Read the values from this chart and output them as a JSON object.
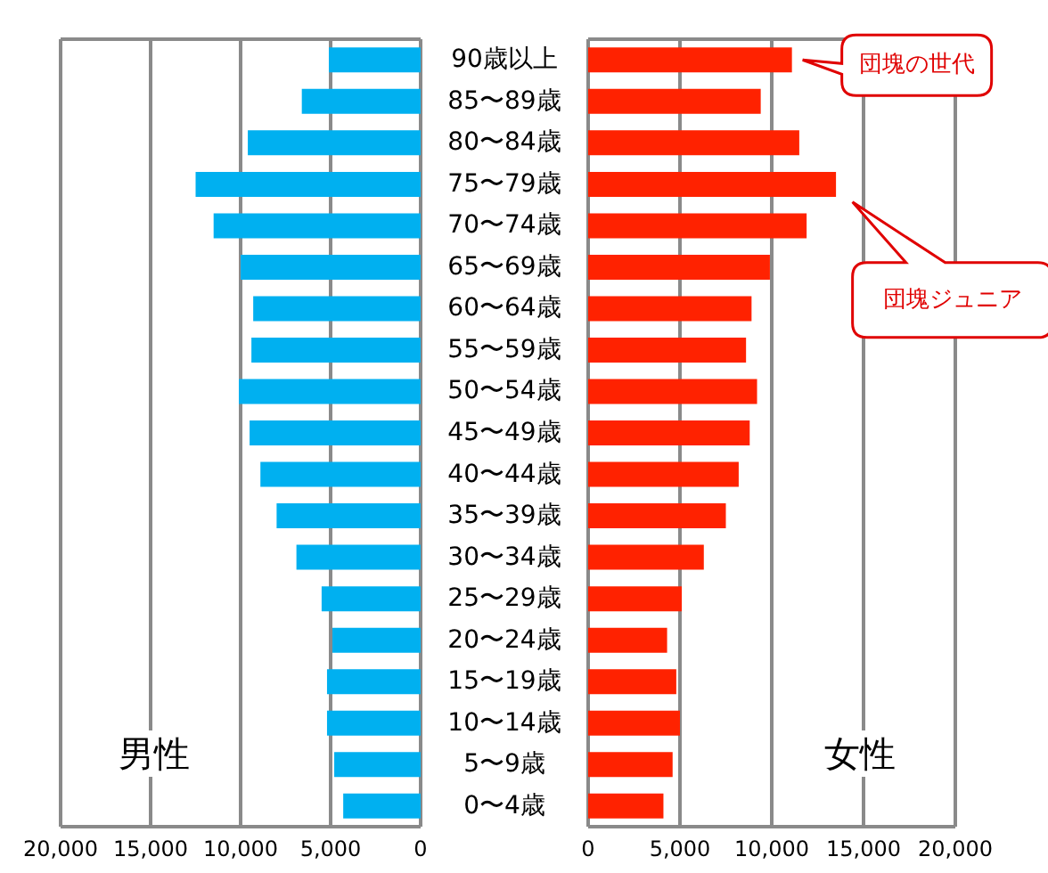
{
  "chart_data": [
    {
      "type": "bar",
      "orientation": "horizontal",
      "categories": [
        null,
        null,
        null,
        null,
        null,
        null,
        null,
        null,
        null,
        null,
        null,
        null,
        null,
        null,
        null,
        null,
        null,
        null,
        null
      ],
      "series": [
        {
          "name": "男性",
          "color": "#00b0f0",
          "values": [
            5100,
            6600,
            9600,
            12500,
            11500,
            10000,
            9300,
            9400,
            10100,
            9500,
            8900,
            8000,
            6900,
            5500,
            4900,
            5200,
            5200,
            4800,
            4300
          ]
        }
      ],
      "xlim": [
        20000,
        0
      ],
      "xticks": [
        {
          "value": 20000,
          "label": "20,000"
        },
        {
          "value": 15000,
          "label": "15,000"
        },
        {
          "value": 10000,
          "label": "10,000"
        },
        {
          "value": 5000,
          "label": "5,000"
        },
        0
      ],
      "grid": "x",
      "tick_labels": "x"
    },
    {
      "type": "bar",
      "orientation": "horizontal",
      "categories": [
        "90歳以上",
        "85〜89歳",
        "80〜84歳",
        "75〜79歳",
        "70〜74歳",
        "65〜69歳",
        "60〜64歳",
        "55〜59歳",
        "50〜54歳",
        "45〜49歳",
        "40〜44歳",
        "35〜39歳",
        "30〜34歳",
        "25〜29歳",
        "20〜24歳",
        "15〜19歳",
        "10〜14歳",
        "5〜9歳",
        "0〜4歳"
      ],
      "series": [
        {
          "name": "女性",
          "color": "#ff2200",
          "values": [
            11100,
            9400,
            11500,
            13500,
            11900,
            9900,
            8900,
            8600,
            9200,
            8800,
            8200,
            7500,
            6300,
            5100,
            4300,
            4800,
            5000,
            4600,
            4100
          ]
        }
      ],
      "xlim": [
        0,
        20000
      ],
      "xticks": [
        0,
        {
          "value": 5000,
          "label": "5,000"
        },
        {
          "value": 10000,
          "label": "10,000"
        },
        {
          "value": 15000,
          "label": "15,000"
        },
        {
          "value": 20000,
          "label": "20,000"
        }
      ],
      "grid": "x",
      "annotations": [
        {
          "text": "団塊の世代",
          "x": 11100,
          "y": "90歳以上"
        },
        "団塊ジュニア"
      ]
    }
  ]
}
